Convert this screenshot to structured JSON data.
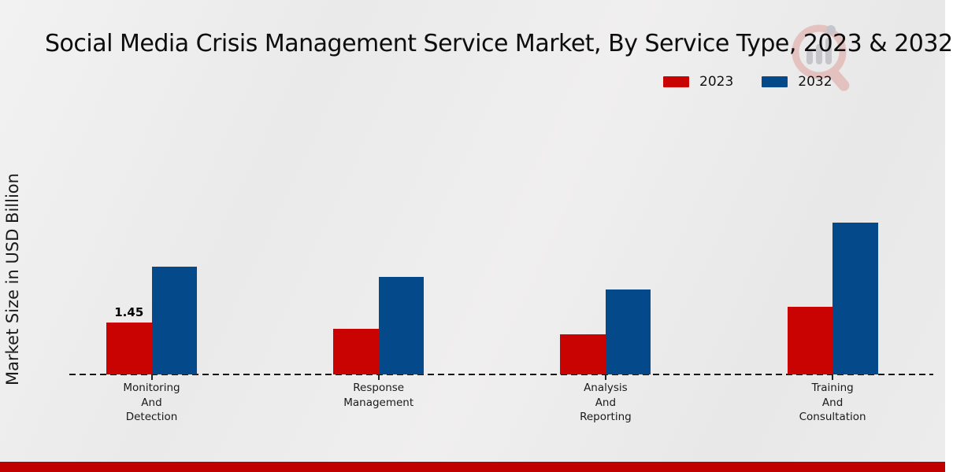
{
  "title": "Social Media Crisis Management Service Market, By Service Type, 2023 & 2032",
  "ylabel": "Market Size in USD Billion",
  "legend": {
    "position": "top-right",
    "items": [
      {
        "label": "2023",
        "color": "#c90202"
      },
      {
        "label": "2032",
        "color": "#04498a"
      }
    ]
  },
  "watermark_icon": "market-research-magnifier-logo",
  "colors": {
    "series_2023": "#c90202",
    "series_2032": "#04498a",
    "background": "#ececec",
    "footer_band": "#c00000",
    "baseline": "#161616",
    "text": "#111111"
  },
  "chart_data": {
    "type": "bar",
    "title": "Social Media Crisis Management Service Market, By Service Type, 2023 & 2032",
    "xlabel": "",
    "ylabel": "Market Size in USD Billion",
    "categories": [
      "Monitoring\nAnd\nDetection",
      "Response\nManagement",
      "Analysis\nAnd\nReporting",
      "Training\nAnd\nConsultation"
    ],
    "series": [
      {
        "name": "2023",
        "color": "#c90202",
        "values": [
          1.45,
          1.27,
          1.12,
          1.89
        ]
      },
      {
        "name": "2032",
        "color": "#04498a",
        "values": [
          3.01,
          2.72,
          2.37,
          4.24
        ]
      }
    ],
    "data_labels": [
      {
        "series": "2023",
        "category_index": 0,
        "text": "1.45"
      }
    ],
    "ylim": [
      0,
      4.5
    ],
    "grid": false,
    "y_axis_ticks_visible": false,
    "baseline_style": "dashed",
    "legend_position": "top-right"
  }
}
